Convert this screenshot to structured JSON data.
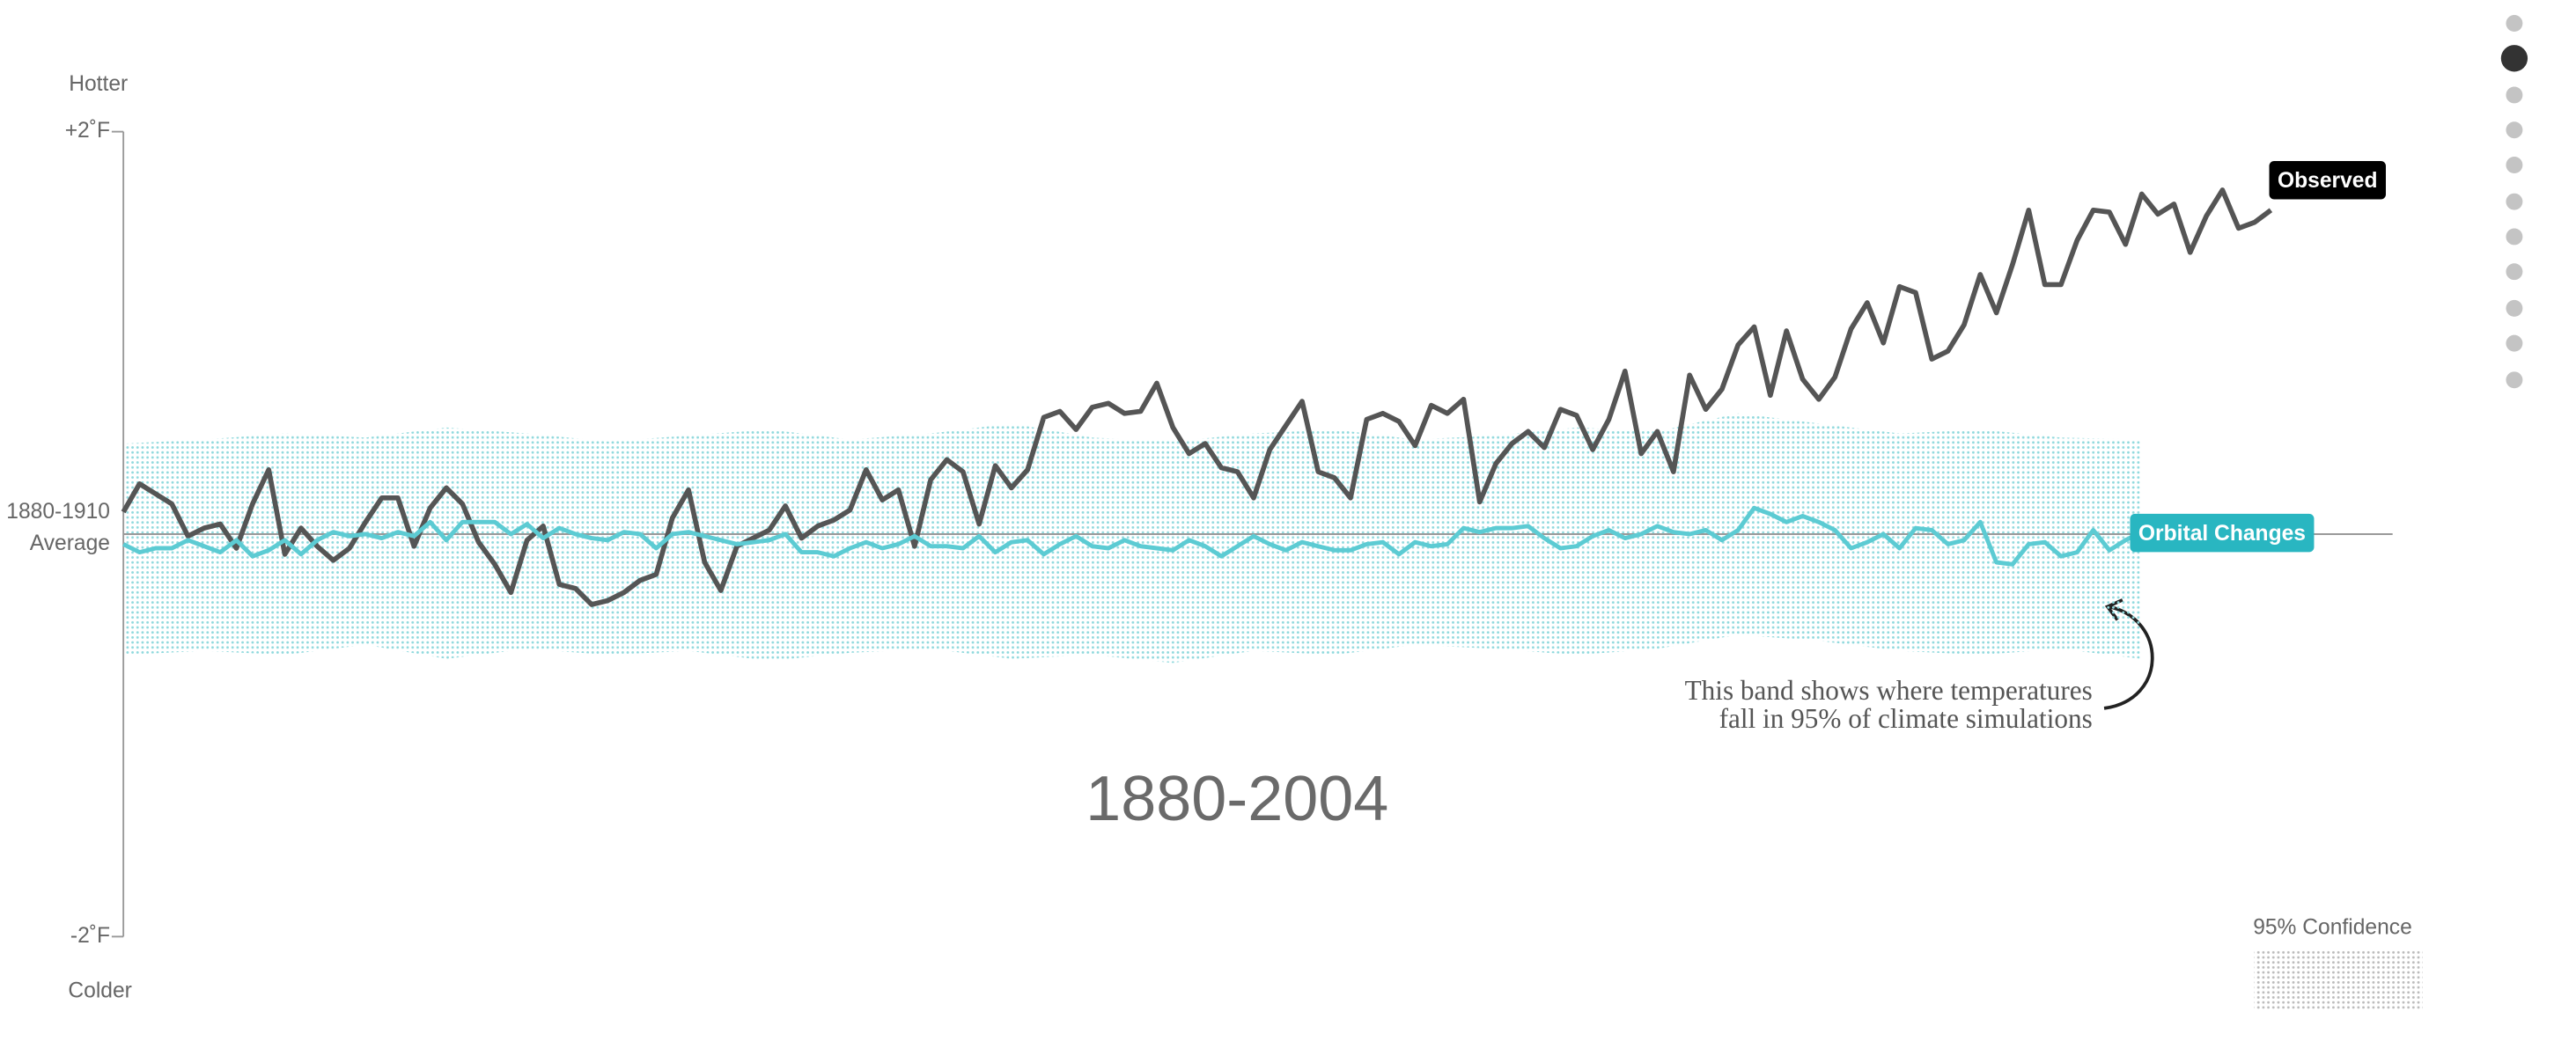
{
  "chart_data": {
    "type": "line",
    "title": "1880-2004",
    "y_label_top": "Hotter",
    "y_label_bottom": "Colder",
    "xlim": [
      1880,
      2013
    ],
    "ylim": [
      -2,
      2
    ],
    "yticks": [
      {
        "value": 2,
        "label": "+2˚F"
      },
      {
        "value": 0,
        "label": [
          "1880-1910",
          "Average"
        ]
      },
      {
        "value": -2,
        "label": "-2˚F"
      }
    ],
    "x": [
      1880,
      1881,
      1882,
      1883,
      1884,
      1885,
      1886,
      1887,
      1888,
      1889,
      1890,
      1891,
      1892,
      1893,
      1894,
      1895,
      1896,
      1897,
      1898,
      1899,
      1900,
      1901,
      1902,
      1903,
      1904,
      1905,
      1906,
      1907,
      1908,
      1909,
      1910,
      1911,
      1912,
      1913,
      1914,
      1915,
      1916,
      1917,
      1918,
      1919,
      1920,
      1921,
      1922,
      1923,
      1924,
      1925,
      1926,
      1927,
      1928,
      1929,
      1930,
      1931,
      1932,
      1933,
      1934,
      1935,
      1936,
      1937,
      1938,
      1939,
      1940,
      1941,
      1942,
      1943,
      1944,
      1945,
      1946,
      1947,
      1948,
      1949,
      1950,
      1951,
      1952,
      1953,
      1954,
      1955,
      1956,
      1957,
      1958,
      1959,
      1960,
      1961,
      1962,
      1963,
      1964,
      1965,
      1966,
      1967,
      1968,
      1969,
      1970,
      1971,
      1972,
      1973,
      1974,
      1975,
      1976,
      1977,
      1978,
      1979,
      1980,
      1981,
      1982,
      1983,
      1984,
      1985,
      1986,
      1987,
      1988,
      1989,
      1990,
      1991,
      1992,
      1993,
      1994,
      1995,
      1996,
      1997,
      1998,
      1999,
      2000,
      2001,
      2002,
      2003,
      2004,
      2005,
      2006,
      2007,
      2008,
      2009,
      2010,
      2011,
      2012,
      2013
    ],
    "series": [
      {
        "name": "Observed",
        "color": "#555555",
        "label_color": "#000000",
        "values": [
          0.11,
          0.25,
          0.2,
          0.15,
          -0.01,
          0.03,
          0.05,
          -0.07,
          0.15,
          0.32,
          -0.1,
          0.03,
          -0.06,
          -0.13,
          -0.07,
          0.06,
          0.18,
          0.18,
          -0.06,
          0.13,
          0.23,
          0.15,
          -0.04,
          -0.15,
          -0.29,
          -0.03,
          0.04,
          -0.25,
          -0.27,
          -0.35,
          -0.33,
          -0.29,
          -0.23,
          -0.2,
          0.08,
          0.22,
          -0.14,
          -0.28,
          -0.06,
          -0.02,
          0.02,
          0.14,
          -0.02,
          0.04,
          0.07,
          0.12,
          0.32,
          0.17,
          0.22,
          -0.06,
          0.27,
          0.37,
          0.31,
          0.05,
          0.34,
          0.23,
          0.32,
          0.58,
          0.61,
          0.52,
          0.63,
          0.65,
          0.6,
          0.61,
          0.75,
          0.53,
          0.4,
          0.45,
          0.33,
          0.31,
          0.18,
          0.42,
          0.54,
          0.66,
          0.31,
          0.28,
          0.18,
          0.57,
          0.6,
          0.56,
          0.44,
          0.64,
          0.6,
          0.67,
          0.16,
          0.35,
          0.45,
          0.51,
          0.43,
          0.62,
          0.59,
          0.42,
          0.57,
          0.81,
          0.4,
          0.51,
          0.31,
          0.79,
          0.62,
          0.72,
          0.94,
          1.03,
          0.69,
          1.01,
          0.77,
          0.67,
          0.78,
          1.02,
          1.15,
          0.95,
          1.23,
          1.2,
          0.87,
          0.91,
          1.04,
          1.29,
          1.1,
          1.34,
          1.61,
          1.24,
          1.24,
          1.46,
          1.61,
          1.6,
          1.44,
          1.69,
          1.59,
          1.64,
          1.4,
          1.58,
          1.71,
          1.52,
          1.55,
          1.61
        ]
      },
      {
        "name": "Orbital Changes",
        "color": "#5ccbd3",
        "label_color": "#29b6c1",
        "values": [
          -0.05,
          -0.09,
          -0.07,
          -0.07,
          -0.03,
          -0.06,
          -0.09,
          -0.03,
          -0.11,
          -0.08,
          -0.03,
          -0.1,
          -0.03,
          0.01,
          -0.01,
          0.0,
          -0.02,
          0.01,
          -0.01,
          0.06,
          -0.03,
          0.06,
          0.06,
          0.06,
          0.0,
          0.05,
          -0.02,
          0.03,
          0.0,
          -0.02,
          -0.03,
          0.01,
          0.0,
          -0.07,
          0.0,
          0.01,
          -0.01,
          -0.03,
          -0.05,
          -0.04,
          -0.03,
          0.0,
          -0.09,
          -0.09,
          -0.11,
          -0.07,
          -0.04,
          -0.07,
          -0.05,
          -0.01,
          -0.06,
          -0.06,
          -0.07,
          -0.01,
          -0.09,
          -0.04,
          -0.03,
          -0.1,
          -0.05,
          -0.01,
          -0.06,
          -0.07,
          -0.03,
          -0.06,
          -0.07,
          -0.08,
          -0.03,
          -0.06,
          -0.11,
          -0.06,
          -0.01,
          -0.05,
          -0.08,
          -0.04,
          -0.06,
          -0.08,
          -0.08,
          -0.05,
          -0.04,
          -0.1,
          -0.04,
          -0.06,
          -0.05,
          0.03,
          0.01,
          0.03,
          0.03,
          0.04,
          -0.02,
          -0.07,
          -0.06,
          -0.01,
          0.02,
          -0.02,
          0.0,
          0.04,
          0.01,
          0.0,
          0.02,
          -0.03,
          0.02,
          0.13,
          0.1,
          0.06,
          0.09,
          0.06,
          0.02,
          -0.07,
          -0.04,
          0.0,
          -0.07,
          0.03,
          0.02,
          -0.05,
          -0.03,
          0.06,
          -0.14,
          -0.15,
          -0.05,
          -0.04,
          -0.11,
          -0.09,
          0.02,
          -0.08,
          -0.03,
          0.01,
          null,
          null,
          null,
          null,
          null,
          null,
          null,
          null
        ]
      }
    ],
    "band": {
      "name": "95% Confidence",
      "color": "#8fd9dd",
      "x": [
        1880,
        1885,
        1890,
        1895,
        1900,
        1905,
        1910,
        1915,
        1920,
        1925,
        1930,
        1935,
        1940,
        1945,
        1950,
        1955,
        1960,
        1965,
        1970,
        1975,
        1980,
        1985,
        1990,
        1995,
        2000,
        2005
      ],
      "upper": [
        0.45,
        0.47,
        0.5,
        0.48,
        0.53,
        0.5,
        0.46,
        0.49,
        0.52,
        0.47,
        0.5,
        0.55,
        0.48,
        0.46,
        0.5,
        0.52,
        0.47,
        0.49,
        0.53,
        0.51,
        0.6,
        0.55,
        0.5,
        0.52,
        0.48,
        0.47
      ],
      "lower": [
        -0.6,
        -0.58,
        -0.6,
        -0.55,
        -0.62,
        -0.57,
        -0.6,
        -0.58,
        -0.63,
        -0.59,
        -0.57,
        -0.62,
        -0.6,
        -0.64,
        -0.58,
        -0.6,
        -0.55,
        -0.57,
        -0.6,
        -0.57,
        -0.5,
        -0.53,
        -0.58,
        -0.6,
        -0.57,
        -0.62
      ]
    },
    "annotation": [
      "This band shows where temperatures",
      "fall in 95% of climate simulations"
    ]
  }
}
